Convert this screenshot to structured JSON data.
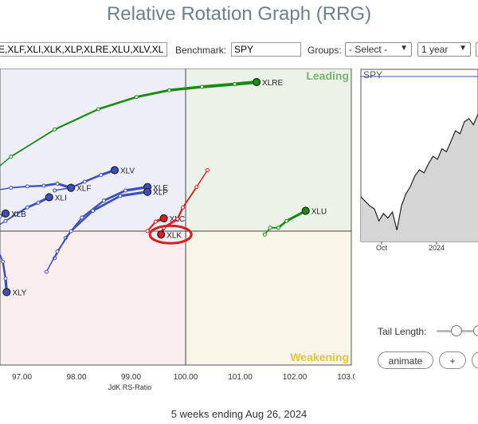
{
  "title": "Relative Rotation Graph (RRG)",
  "controls": {
    "tickers_value": "E,XLF,XLI,XLK,XLP,XLRE,XLU,XLV,XL",
    "benchmark_label": "Benchmark:",
    "benchmark_value": "SPY",
    "groups_label": "Groups:",
    "groups_value": "- Select -",
    "period_value": "1 year"
  },
  "chart_data": {
    "type": "scatter",
    "title": "",
    "xlabel": "JdK RS-Ratio",
    "ylabel": "",
    "xlim": [
      96.5,
      103.0
    ],
    "x_ticks": [
      "97.00",
      "98.00",
      "99.00",
      "100.00",
      "101.00",
      "102.00",
      "103.00"
    ],
    "quadrants": [
      "Leading",
      "Weakening"
    ],
    "quadrant_colors": {
      "leading": "#ebf3e8",
      "weakening": "#f8f6e6",
      "lagging": "#fbeef0",
      "improving": "#eeeef8"
    },
    "series": [
      {
        "name": "XLRE",
        "color": "#1a8a12",
        "points": [
          [
            96.5,
            100.9
          ],
          [
            96.8,
            101.1
          ],
          [
            97.6,
            101.5
          ],
          [
            98.4,
            101.8
          ],
          [
            99.1,
            101.98
          ],
          [
            99.7,
            102.08
          ],
          [
            100.3,
            102.13
          ],
          [
            100.9,
            102.17
          ],
          [
            101.3,
            102.2
          ]
        ]
      },
      {
        "name": "XLV",
        "color": "#3b4fbe",
        "points": [
          [
            97.6,
            100.6
          ],
          [
            97.9,
            100.64
          ],
          [
            98.15,
            100.73
          ],
          [
            98.45,
            100.83
          ],
          [
            98.7,
            100.9
          ]
        ]
      },
      {
        "name": "XLF",
        "color": "#3b4fbe",
        "points": [
          [
            96.5,
            100.6
          ],
          [
            96.8,
            100.64
          ],
          [
            97.1,
            100.66
          ],
          [
            97.4,
            100.67
          ],
          [
            97.65,
            100.7
          ],
          [
            97.9,
            100.64
          ]
        ]
      },
      {
        "name": "XLI",
        "color": "#3b4fbe",
        "points": [
          [
            96.5,
            100.05
          ],
          [
            96.7,
            100.15
          ],
          [
            96.9,
            100.25
          ],
          [
            97.1,
            100.35
          ],
          [
            97.3,
            100.42
          ],
          [
            97.5,
            100.5
          ]
        ]
      },
      {
        "name": "XLE",
        "color": "#3b4fbe",
        "points": [
          [
            97.6,
            99.6
          ],
          [
            97.8,
            99.9
          ],
          [
            98.1,
            100.2
          ],
          [
            98.5,
            100.45
          ],
          [
            98.9,
            100.6
          ],
          [
            99.3,
            100.65
          ]
        ]
      },
      {
        "name": "XLP",
        "color": "#3b4fbe",
        "points": [
          [
            97.45,
            99.4
          ],
          [
            97.65,
            99.7
          ],
          [
            97.9,
            100.0
          ],
          [
            98.3,
            100.3
          ],
          [
            98.8,
            100.52
          ],
          [
            99.3,
            100.58
          ]
        ]
      },
      {
        "name": "XLC",
        "color": "#d42020",
        "points": [
          [
            99.3,
            100.0
          ],
          [
            99.45,
            100.14
          ],
          [
            99.6,
            100.19
          ]
        ]
      },
      {
        "name": "XLK",
        "color": "#d42020",
        "points": [
          [
            100.4,
            100.9
          ],
          [
            100.2,
            100.65
          ],
          [
            99.95,
            100.35
          ],
          [
            99.85,
            100.18
          ],
          [
            99.6,
            100.05
          ],
          [
            99.55,
            99.95
          ]
        ]
      },
      {
        "name": "XLU",
        "color": "#1a8a12",
        "points": [
          [
            101.45,
            99.95
          ],
          [
            101.55,
            100.05
          ],
          [
            101.7,
            100.05
          ],
          [
            101.85,
            100.15
          ],
          [
            102.2,
            100.3
          ]
        ]
      },
      {
        "name": "XLB",
        "color": "#3b4fbe",
        "points": [
          [
            96.5,
            100.2
          ],
          [
            96.6,
            100.22
          ],
          [
            96.7,
            100.26
          ]
        ]
      },
      {
        "name": "XLY",
        "color": "#3b4fbe",
        "points": [
          [
            96.55,
            99.75
          ],
          [
            96.65,
            99.55
          ],
          [
            96.7,
            99.3
          ],
          [
            96.72,
            99.1
          ]
        ]
      }
    ],
    "highlight": "XLK"
  },
  "sidechart": {
    "ticker": "SPY",
    "x_labels": [
      "Oct",
      "2024"
    ],
    "values": [
      0.28,
      0.25,
      0.22,
      0.2,
      0.12,
      0.17,
      0.14,
      0.18,
      0.06,
      0.22,
      0.3,
      0.35,
      0.42,
      0.46,
      0.44,
      0.5,
      0.55,
      0.53,
      0.6,
      0.58,
      0.65,
      0.72,
      0.7,
      0.78,
      0.8,
      0.76,
      0.83
    ]
  },
  "tail": {
    "label": "Tail Length:",
    "value": 5
  },
  "buttons": {
    "animate": "animate",
    "plus": "+"
  },
  "footer": "5 weeks ending Aug 26, 2024"
}
